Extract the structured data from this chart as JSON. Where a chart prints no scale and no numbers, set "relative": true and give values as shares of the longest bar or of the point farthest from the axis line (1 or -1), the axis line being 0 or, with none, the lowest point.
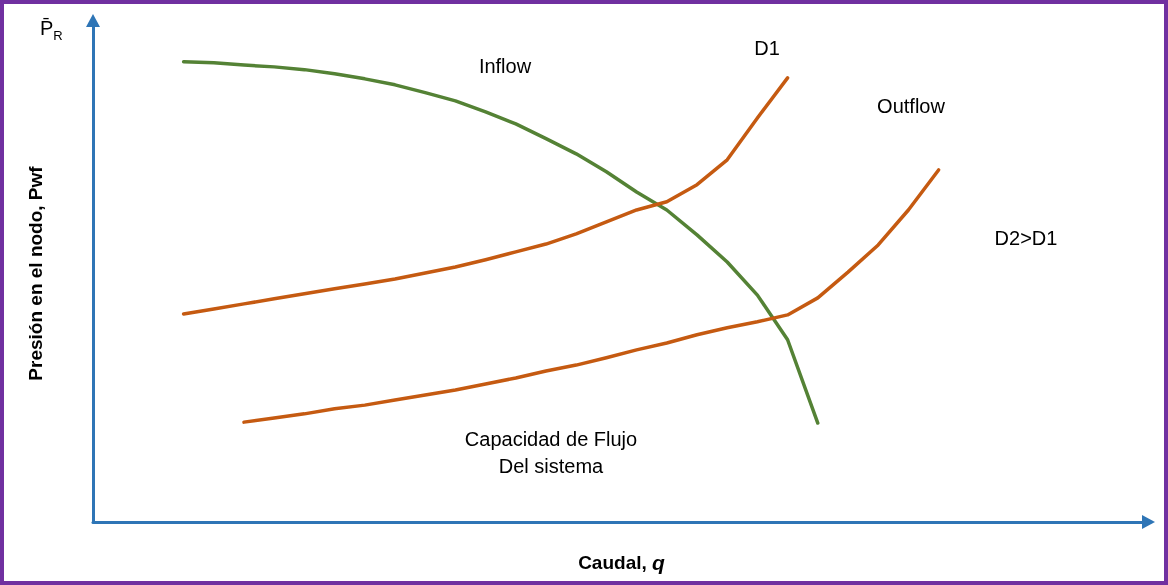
{
  "chart_data": {
    "type": "line",
    "relative": true,
    "xlabel": "Caudal, q",
    "ylabel": "Presión en el nodo, Pwf",
    "categories": [
      null,
      null,
      null,
      null,
      null,
      null,
      null,
      null,
      null,
      null,
      null,
      null,
      null,
      null,
      null,
      null,
      null,
      null,
      null,
      null,
      null,
      null,
      null,
      null,
      null,
      null,
      null,
      null,
      null,
      null,
      null,
      null,
      null,
      null,
      null,
      null
    ],
    "series": [
      {
        "color": "#548235",
        "values": [
          null,
          null,
          null,
          1.0,
          0.998,
          0.993,
          0.989,
          0.983,
          0.974,
          0.963,
          0.95,
          0.933,
          0.915,
          0.891,
          0.865,
          0.833,
          0.8,
          0.761,
          0.717,
          0.678,
          0.624,
          0.565,
          0.493,
          0.396,
          0.215,
          null,
          null,
          null,
          null,
          null,
          null,
          null,
          null,
          null,
          null,
          null
        ]
      },
      {
        "color": "#c55a11",
        "values": [
          null,
          null,
          null,
          0.452,
          0.463,
          0.474,
          0.485,
          0.496,
          0.507,
          0.517,
          0.528,
          0.541,
          0.554,
          0.57,
          0.587,
          0.604,
          0.626,
          0.652,
          0.678,
          0.696,
          0.733,
          0.787,
          0.878,
          0.965,
          null,
          null,
          null,
          null,
          null,
          null,
          null,
          null,
          null,
          null,
          null,
          null
        ]
      },
      {
        "color": "#c55a11",
        "values": [
          null,
          null,
          null,
          null,
          null,
          0.217,
          0.226,
          0.235,
          0.246,
          0.254,
          0.265,
          0.276,
          0.287,
          0.3,
          0.313,
          0.328,
          0.341,
          0.357,
          0.374,
          0.389,
          0.407,
          0.422,
          0.435,
          0.45,
          0.487,
          0.543,
          0.602,
          0.678,
          0.765,
          null,
          null,
          null,
          null,
          null,
          null,
          null
        ]
      }
    ],
    "annotations": [
      "P̄$_{R}$",
      "Inflow",
      "D1",
      "Outflow",
      "D2>D1",
      "Capacidad de Flujo\nDel sistema"
    ],
    "marker": "none",
    "line_style": "solid",
    "grid": false
  }
}
